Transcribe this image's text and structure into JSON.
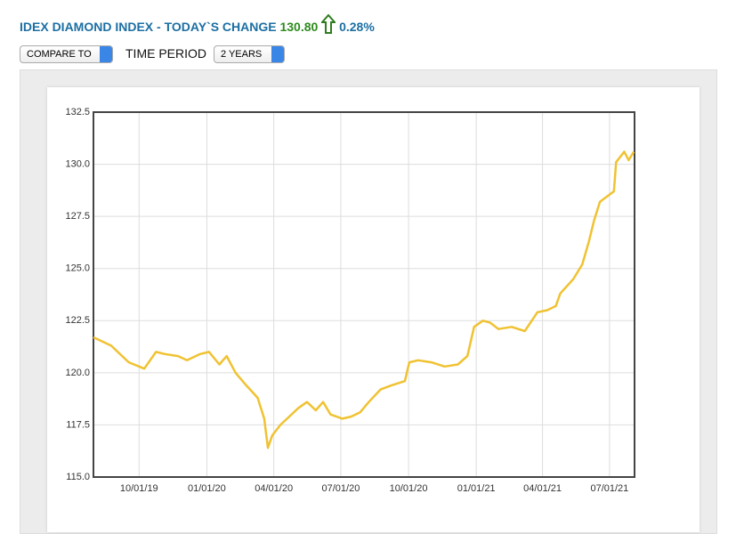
{
  "header": {
    "title": "IDEX DIAMOND INDEX - TODAY`S CHANGE",
    "change": "130.80",
    "percent": "0.28%"
  },
  "controls": {
    "compare": "COMPARE TO",
    "period_label": "TIME PERIOD",
    "period_value": "2 YEARS"
  },
  "chart_data": {
    "type": "line",
    "x": [
      "2019-07-31",
      "2019-08-24",
      "2019-09-17",
      "2019-10-01",
      "2019-10-08",
      "2019-10-24",
      "2019-11-05",
      "2019-11-23",
      "2019-12-05",
      "2019-12-23",
      "2020-01-04",
      "2020-01-18",
      "2020-01-28",
      "2020-02-09",
      "2020-02-21",
      "2020-03-10",
      "2020-03-19",
      "2020-03-24",
      "2020-03-30",
      "2020-04-10",
      "2020-04-22",
      "2020-05-04",
      "2020-05-16",
      "2020-05-28",
      "2020-06-07",
      "2020-06-17",
      "2020-07-03",
      "2020-07-15",
      "2020-07-27",
      "2020-08-08",
      "2020-08-24",
      "2020-09-08",
      "2020-09-26",
      "2020-10-02",
      "2020-10-14",
      "2020-11-01",
      "2020-11-19",
      "2020-12-07",
      "2020-12-20",
      "2020-12-29",
      "2021-01-10",
      "2021-01-20",
      "2021-01-31",
      "2021-02-18",
      "2021-03-08",
      "2021-03-25",
      "2021-04-07",
      "2021-04-19",
      "2021-04-25",
      "2021-05-13",
      "2021-05-25",
      "2021-06-03",
      "2021-06-10",
      "2021-06-18",
      "2021-07-07",
      "2021-07-10",
      "2021-07-21",
      "2021-07-27",
      "2021-08-03"
    ],
    "series": [
      {
        "color": "#f0c232",
        "values": [
          121.7,
          121.3,
          120.5,
          120.3,
          120.2,
          121.0,
          120.9,
          120.8,
          120.6,
          120.9,
          121.0,
          120.4,
          120.8,
          120.0,
          119.5,
          118.8,
          117.8,
          116.4,
          117.0,
          117.5,
          117.9,
          118.3,
          118.6,
          118.2,
          118.6,
          118.0,
          117.8,
          117.9,
          118.1,
          118.6,
          119.2,
          119.4,
          119.6,
          120.5,
          120.6,
          120.5,
          120.3,
          120.4,
          120.8,
          122.2,
          122.5,
          122.4,
          122.1,
          122.2,
          122.0,
          122.9,
          123.0,
          123.2,
          123.8,
          124.5,
          125.2,
          126.3,
          127.3,
          128.2,
          128.7,
          130.1,
          130.6,
          130.2,
          130.6
        ]
      }
    ],
    "xlim": [
      "2019-07-31",
      "2021-08-04"
    ],
    "xticks": [
      {
        "value": "2019-10-01",
        "label": "10/01/19"
      },
      {
        "value": "2020-01-01",
        "label": "01/01/20"
      },
      {
        "value": "2020-04-01",
        "label": "04/01/20"
      },
      {
        "value": "2020-07-01",
        "label": "07/01/20"
      },
      {
        "value": "2020-10-01",
        "label": "10/01/20"
      },
      {
        "value": "2021-01-01",
        "label": "01/01/21"
      },
      {
        "value": "2021-04-01",
        "label": "04/01/21"
      },
      {
        "value": "2021-07-01",
        "label": "07/01/21"
      }
    ],
    "ylim": [
      115,
      132.5
    ],
    "yticks": [
      {
        "value": 115,
        "label": "115.0"
      },
      117.5,
      {
        "value": 120,
        "label": "120.0"
      },
      122.5,
      {
        "value": 125,
        "label": "125.0"
      },
      127.5,
      {
        "value": 130,
        "label": "130.0"
      },
      132.5
    ],
    "grid": true
  }
}
